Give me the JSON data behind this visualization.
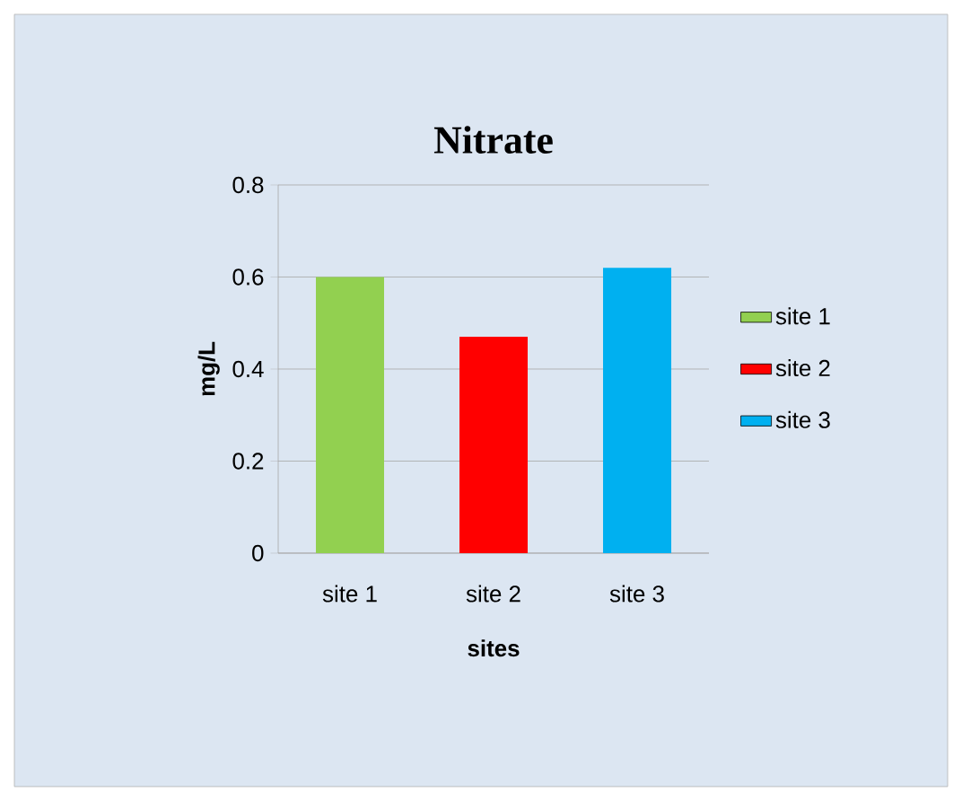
{
  "chart_data": {
    "type": "bar",
    "title": "Nitrate",
    "xlabel": "sites",
    "ylabel": "mg/L",
    "categories": [
      "site 1",
      "site 2",
      "site 3"
    ],
    "series": [
      {
        "name": "site 1",
        "color": "#92d050",
        "values": [
          0.6,
          null,
          null
        ]
      },
      {
        "name": "site 2",
        "color": "#ff0000",
        "values": [
          null,
          0.47,
          null
        ]
      },
      {
        "name": "site 3",
        "color": "#00b0f0",
        "values": [
          null,
          null,
          0.62
        ]
      }
    ],
    "ylim": [
      0,
      0.8
    ],
    "yticks": [
      0,
      0.2,
      0.4,
      0.6,
      0.8
    ],
    "grid": "y",
    "legend": "right"
  }
}
